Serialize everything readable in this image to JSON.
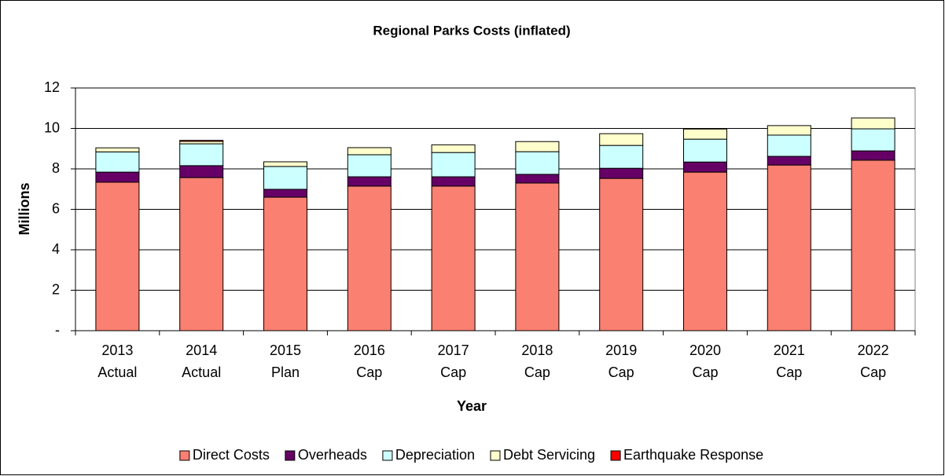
{
  "chart_data": {
    "type": "stacked_bar",
    "title": "Regional Parks Costs (inflated)",
    "x_label": "Year",
    "y_label": "Millions",
    "categories": [
      [
        "2013",
        "Actual"
      ],
      [
        "2014",
        "Actual"
      ],
      [
        "2015",
        "Plan"
      ],
      [
        "2016",
        "Cap"
      ],
      [
        "2017",
        "Cap"
      ],
      [
        "2018",
        "Cap"
      ],
      [
        "2019",
        "Cap"
      ],
      [
        "2020",
        "Cap"
      ],
      [
        "2021",
        "Cap"
      ],
      [
        "2022",
        "Cap"
      ]
    ],
    "series": [
      {
        "name": "Direct Costs",
        "color": "#fa8072",
        "values": [
          7.34,
          7.57,
          6.6,
          7.15,
          7.15,
          7.3,
          7.53,
          7.84,
          8.19,
          8.43
        ]
      },
      {
        "name": "Overheads",
        "color": "#660066",
        "values": [
          0.5,
          0.59,
          0.39,
          0.46,
          0.46,
          0.43,
          0.5,
          0.5,
          0.43,
          0.46
        ]
      },
      {
        "name": "Depreciation",
        "color": "#ccffff",
        "values": [
          1.0,
          1.08,
          1.13,
          1.09,
          1.2,
          1.12,
          1.13,
          1.13,
          1.05,
          1.09
        ]
      },
      {
        "name": "Debt Servicing",
        "color": "#ffffcc",
        "values": [
          0.2,
          0.12,
          0.23,
          0.35,
          0.38,
          0.5,
          0.58,
          0.5,
          0.47,
          0.54
        ]
      },
      {
        "name": "Earthquake Response",
        "color": "#ff0000",
        "values": [
          0,
          0.05,
          0,
          0,
          0,
          0,
          0,
          0,
          0,
          0
        ]
      }
    ],
    "ylim": [
      0,
      12
    ],
    "yticks": [
      {
        "value": 0,
        "label": "-"
      },
      2,
      4,
      6,
      8,
      10,
      12
    ],
    "grid": true,
    "legend": "bottom"
  }
}
